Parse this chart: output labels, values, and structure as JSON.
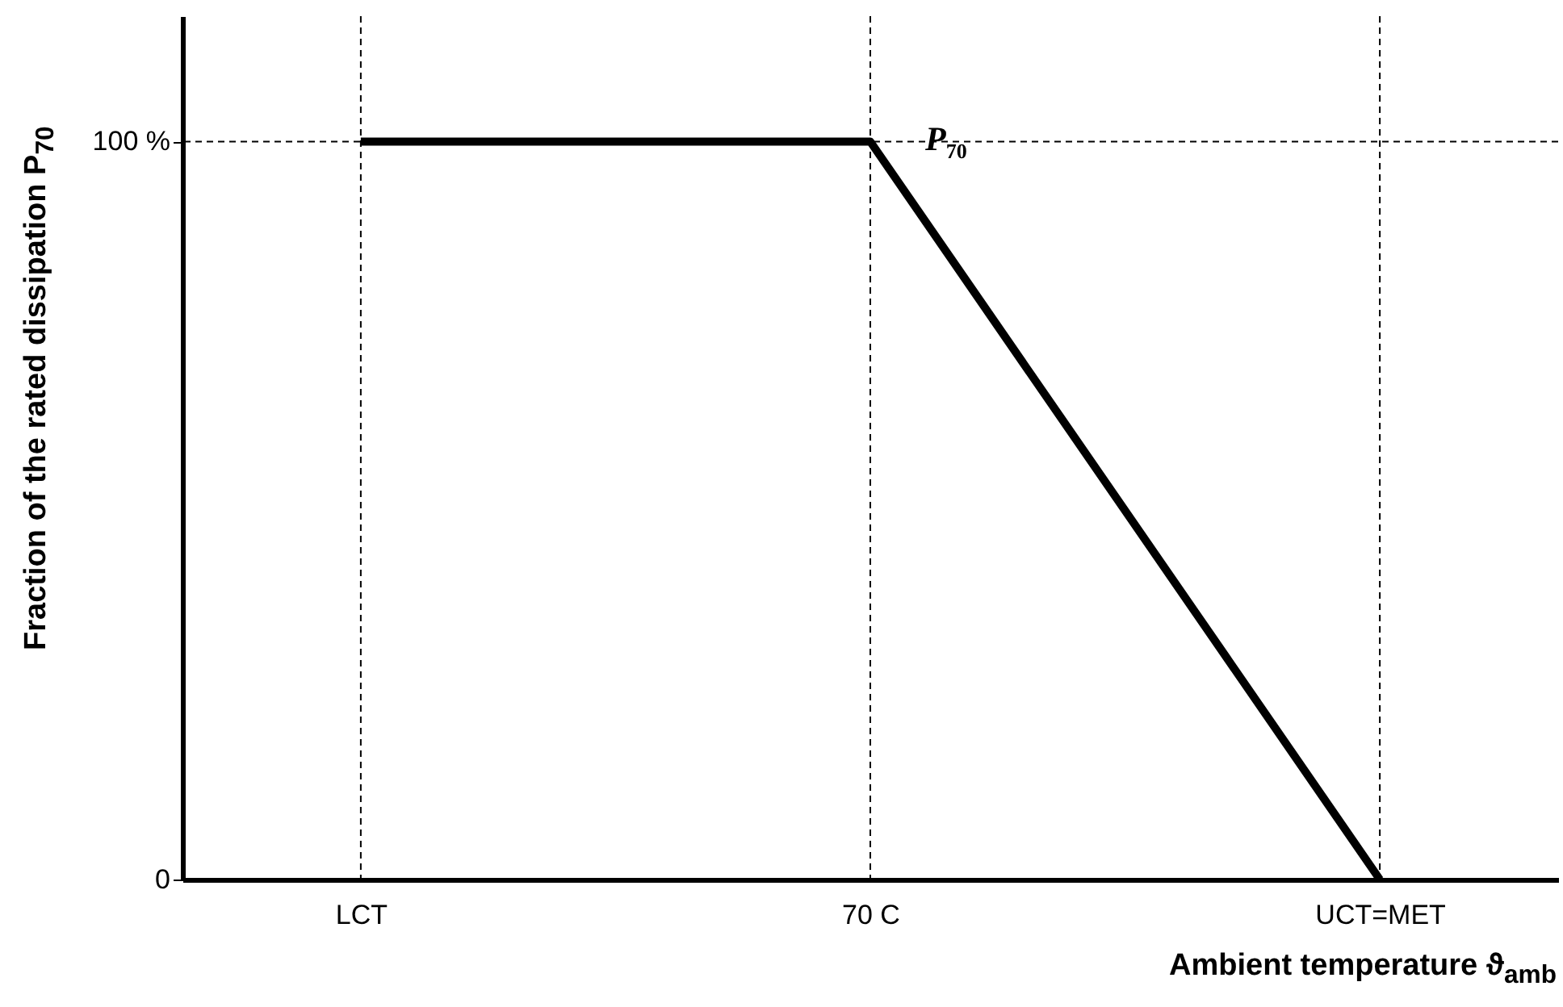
{
  "chart_data": {
    "type": "line",
    "categories": [
      "LCT",
      "70 C",
      "UCT=MET"
    ],
    "values": [
      100,
      100,
      0
    ],
    "color": "#000000",
    "xlabel": "Ambient temperature ϑ$_{amb}$",
    "ylabel": "Fraction of the rated dissipation P$_{70}$",
    "ylim": [
      0,
      117
    ],
    "yticks": [
      0,
      {
        "value": 100,
        "label": "100 %"
      }
    ],
    "annotations": [
      {
        "text": "P$_{70}$",
        "x": "70 C",
        "y": 100
      }
    ],
    "ref_lines": [
      {
        "axis": "x",
        "value": "LCT",
        "line_style": "dashed"
      },
      {
        "axis": "x",
        "value": "70 C",
        "line_style": "dashed"
      },
      {
        "axis": "x",
        "value": "UCT=MET",
        "line_style": "dashed"
      },
      {
        "axis": "y",
        "value": 100,
        "line_style": "dashed"
      }
    ],
    "grid": false,
    "marker": "none",
    "line_style": "solid"
  }
}
